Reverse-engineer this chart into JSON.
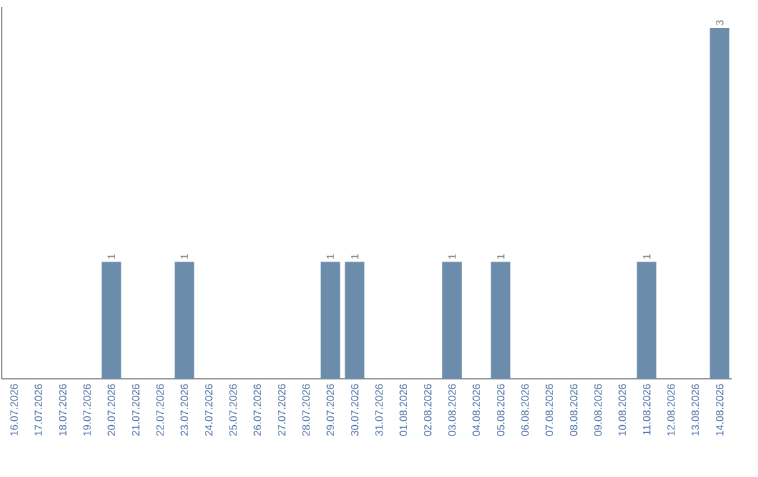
{
  "chart_data": {
    "type": "bar",
    "color": "#6b8cab",
    "categories": [
      "16.07.2026",
      "17.07.2026",
      "18.07.2026",
      "19.07.2026",
      "20.07.2026",
      "21.07.2026",
      "22.07.2026",
      "23.07.2026",
      "24.07.2026",
      "25.07.2026",
      "26.07.2026",
      "27.07.2026",
      "28.07.2026",
      "29.07.2026",
      "30.07.2026",
      "31.07.2026",
      "01.08.2026",
      "02.08.2026",
      "03.08.2026",
      "04.08.2026",
      "05.08.2026",
      "06.08.2026",
      "07.08.2026",
      "08.08.2026",
      "09.08.2026",
      "10.08.2026",
      "11.08.2026",
      "12.08.2026",
      "13.08.2026",
      "14.08.2026"
    ],
    "values": [
      0,
      0,
      0,
      0,
      1,
      0,
      0,
      1,
      0,
      0,
      0,
      0,
      0,
      1,
      1,
      0,
      0,
      0,
      1,
      0,
      1,
      0,
      0,
      0,
      0,
      0,
      1,
      0,
      0,
      3
    ],
    "value_labels": [
      null,
      null,
      null,
      null,
      "1",
      null,
      null,
      "1",
      null,
      null,
      null,
      null,
      null,
      "1",
      "1",
      null,
      null,
      null,
      "1",
      null,
      "1",
      null,
      null,
      null,
      null,
      null,
      "1",
      null,
      null,
      "3"
    ],
    "tick_labels": "x",
    "grid": false
  }
}
